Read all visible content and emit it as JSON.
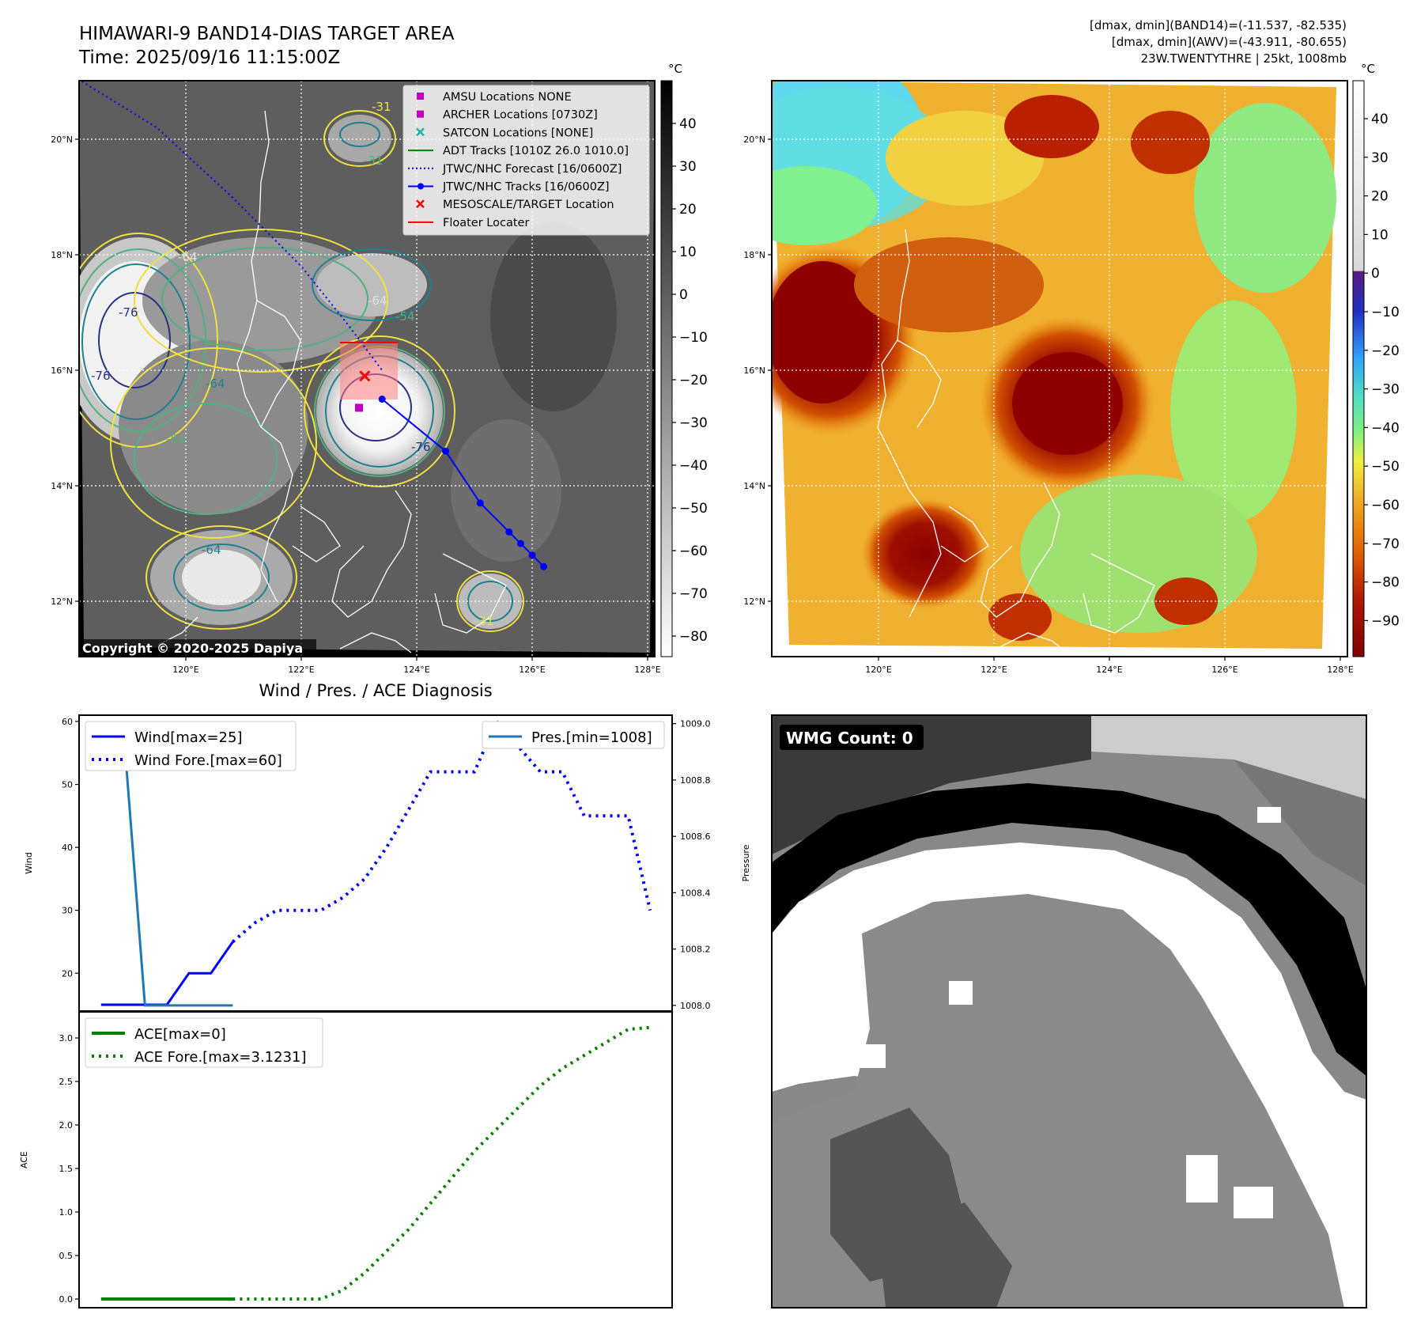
{
  "header": {
    "title": "HIMAWARI-9 BAND14-DIAS TARGET AREA",
    "time": "Time: 2025/09/16 11:15:00Z",
    "stats_line1": "[dmax, dmin](BAND14)=(-11.537, -82.535)",
    "stats_line2": "[dmax, dmin](AWV)=(-43.911, -80.655)",
    "stats_line3": "23W.TWENTYTHRE | 25kt, 1008mb",
    "copyright": "Copyright © 2020-2025 Dapiya"
  },
  "maps": {
    "lat_ticks": [
      "20°N",
      "18°N",
      "16°N",
      "14°N",
      "12°N"
    ],
    "lon_ticks": [
      "120°E",
      "122°E",
      "124°E",
      "126°E",
      "128°E"
    ],
    "colorbar_unit": "°C",
    "left_colorbar_ticks": [
      "40",
      "30",
      "20",
      "10",
      "0",
      "−10",
      "−20",
      "−30",
      "−40",
      "−50",
      "−60",
      "−70",
      "−80"
    ],
    "right_colorbar_ticks": [
      "40",
      "30",
      "20",
      "10",
      "0",
      "−10",
      "−20",
      "−30",
      "−40",
      "−50",
      "−60",
      "−70",
      "−80",
      "−90"
    ],
    "contour_labels": [
      "-64",
      "-76",
      "-31",
      "-54",
      "-64",
      "-76",
      "-54",
      "-31",
      "-64",
      "-76",
      "-64",
      "-31"
    ],
    "legend": [
      {
        "label": "AMSU Locations NONE",
        "kind": "square",
        "color": "#c000c0"
      },
      {
        "label": "ARCHER Locations [0730Z]",
        "kind": "square",
        "color": "#c000c0"
      },
      {
        "label": "SATCON Locations [NONE]",
        "kind": "x",
        "color": "#20b0b0"
      },
      {
        "label": "ADT Tracks [1010Z 26.0 1010.0]",
        "kind": "line",
        "color": "#008000"
      },
      {
        "label": "JTWC/NHC Forecast [16/0600Z]",
        "kind": "dotted",
        "color": "#0000ff"
      },
      {
        "label": "JTWC/NHC Tracks [16/0600Z]",
        "kind": "line-dot",
        "color": "#0000ff"
      },
      {
        "label": "MESOSCALE/TARGET Location",
        "kind": "x",
        "color": "#ff0000"
      },
      {
        "label": "Floater Locater",
        "kind": "line",
        "color": "#ff0000"
      }
    ],
    "track_forecast": [
      [
        118.2,
        21.0
      ],
      [
        119.5,
        20.2
      ],
      [
        120.8,
        19.0
      ],
      [
        122.0,
        17.8
      ],
      [
        122.8,
        16.8
      ],
      [
        123.4,
        16.0
      ]
    ],
    "track_observed": [
      [
        123.4,
        15.5
      ],
      [
        124.5,
        14.6
      ],
      [
        125.1,
        13.7
      ],
      [
        125.6,
        13.2
      ],
      [
        125.8,
        13.0
      ],
      [
        126.0,
        12.8
      ],
      [
        126.2,
        12.6
      ]
    ],
    "archer_location": [
      123.0,
      15.35
    ],
    "target_location": [
      123.1,
      15.9
    ]
  },
  "diagnosis": {
    "title": "Wind / Pres. / ACE Diagnosis",
    "wmg_label": "WMG Count: 0"
  },
  "chart_data": [
    {
      "type": "line",
      "title": "Wind / Pres. / ACE Diagnosis",
      "ylabel": "Wind",
      "ylabel_right": "Pressure",
      "ylim": [
        14,
        61
      ],
      "ylim_right": [
        1007.98,
        1009.03
      ],
      "yticks": [
        20,
        30,
        40,
        50,
        60
      ],
      "yticks_right": [
        "1008.0",
        "1008.2",
        "1008.4",
        "1008.6",
        "1008.8",
        "1009.0"
      ],
      "xlim": [
        0,
        27
      ],
      "legend_left": [
        "Wind[max=25]",
        "Wind Fore.[max=60]"
      ],
      "legend_right": [
        "Pres.[min=1008]"
      ],
      "series": [
        {
          "name": "Wind[max=25]",
          "axis": "left",
          "style": "solid",
          "color": "#0000ff",
          "x": [
            1,
            3,
            4,
            5,
            6,
            7
          ],
          "y": [
            15,
            15,
            15,
            20,
            20,
            25
          ]
        },
        {
          "name": "Wind Fore.[max=60]",
          "axis": "left",
          "style": "dotted",
          "color": "#0000ff",
          "x": [
            7,
            8,
            9,
            10,
            11,
            12,
            13,
            14,
            15,
            16,
            17,
            18,
            19,
            20,
            21,
            22,
            23,
            24,
            25,
            26
          ],
          "y": [
            25,
            28,
            30,
            30,
            30,
            32,
            35,
            40,
            46,
            52,
            52,
            52,
            60,
            56,
            52,
            52,
            45,
            45,
            45,
            30
          ]
        },
        {
          "name": "Pres.[min=1008]",
          "axis": "right",
          "style": "solid",
          "color": "#1f77b4",
          "x": [
            1,
            2,
            3,
            4,
            5,
            6,
            7
          ],
          "y": [
            1009.0,
            1009.0,
            1008.0,
            1008.0,
            1008.0,
            1008.0,
            1008.0
          ]
        }
      ]
    },
    {
      "type": "line",
      "ylabel": "ACE",
      "ylim": [
        -0.1,
        3.3
      ],
      "yticks": [
        "0.0",
        "0.5",
        "1.0",
        "1.5",
        "2.0",
        "2.5",
        "3.0"
      ],
      "xlim": [
        0,
        27
      ],
      "legend": [
        "ACE[max=0]",
        "ACE Fore.[max=3.1231]"
      ],
      "series": [
        {
          "name": "ACE[max=0]",
          "style": "solid",
          "color": "#008000",
          "x": [
            1,
            7
          ],
          "y": [
            0,
            0
          ]
        },
        {
          "name": "ACE Fore.[max=3.1231]",
          "style": "dotted",
          "color": "#008000",
          "x": [
            7,
            11,
            12,
            13,
            14,
            15,
            16,
            17,
            18,
            19,
            20,
            21,
            22,
            23,
            24,
            25,
            26
          ],
          "y": [
            0,
            0,
            0.1,
            0.3,
            0.55,
            0.8,
            1.1,
            1.4,
            1.7,
            1.95,
            2.2,
            2.45,
            2.65,
            2.8,
            2.95,
            3.1,
            3.12
          ]
        }
      ]
    }
  ]
}
